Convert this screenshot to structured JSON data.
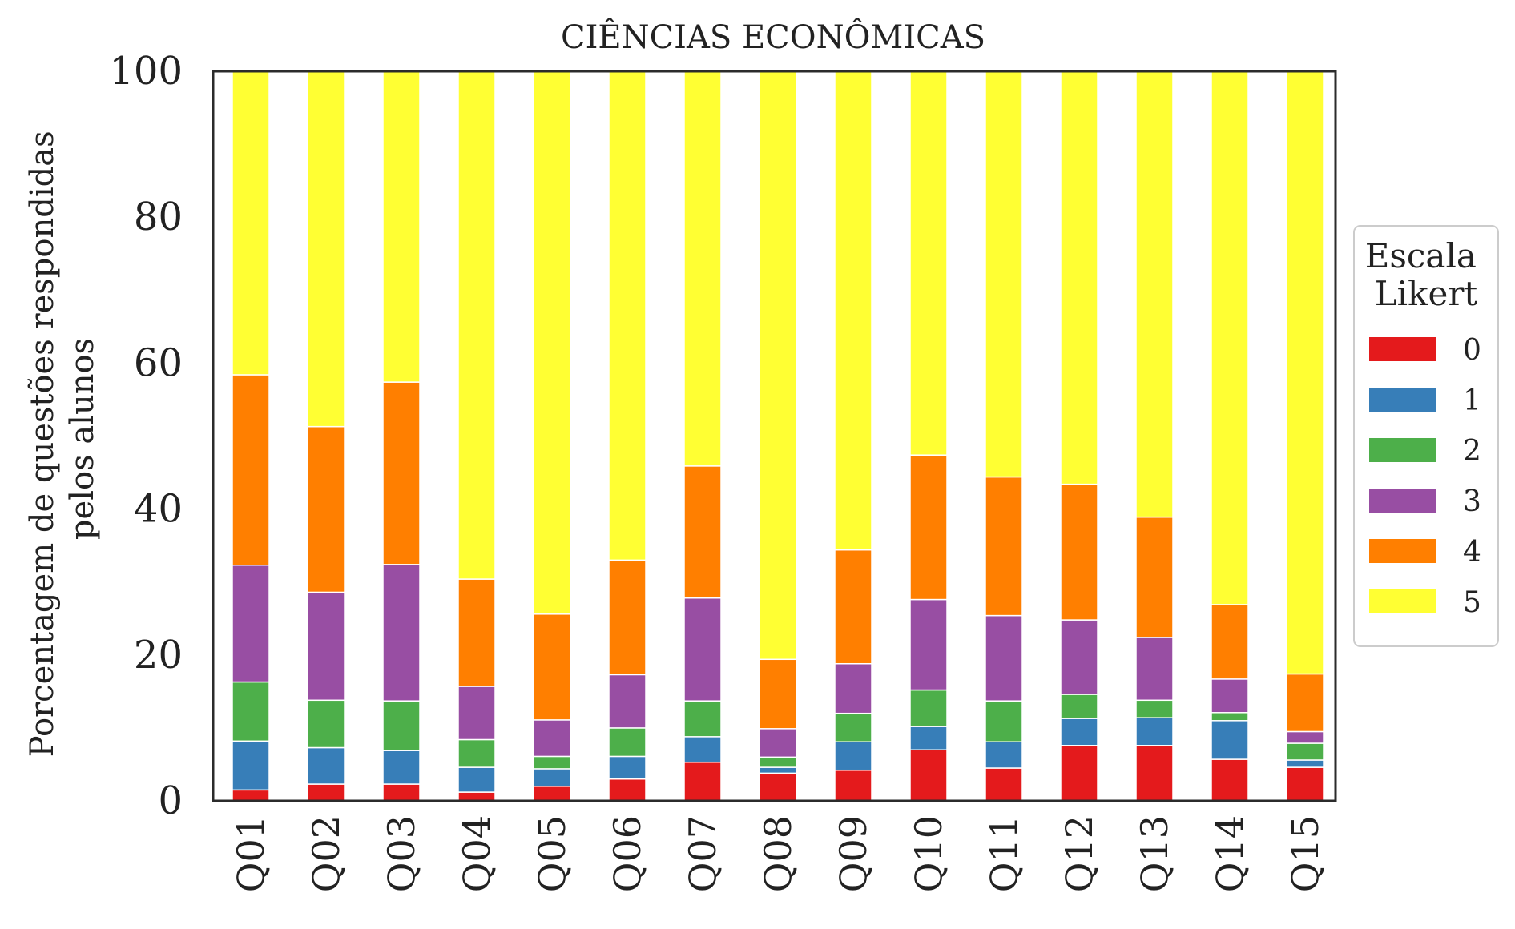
{
  "chart_data": {
    "type": "bar",
    "stacked": true,
    "title": "CIÊNCIAS ECONÔMICAS",
    "ylabel_lines": [
      "Porcentagem de questões respondidas",
      "pelos alunos"
    ],
    "xlabel": "",
    "ylim": [
      0,
      100
    ],
    "yticks": [
      "0",
      "20",
      "40",
      "60",
      "80",
      "100"
    ],
    "grid": false,
    "legend_position": "right",
    "legend_title_lines": [
      "Escala",
      "Likert"
    ],
    "categories": [
      "Q01",
      "Q02",
      "Q03",
      "Q04",
      "Q05",
      "Q06",
      "Q07",
      "Q08",
      "Q09",
      "Q10",
      "Q11",
      "Q12",
      "Q13",
      "Q14",
      "Q15"
    ],
    "series": [
      {
        "name": "0",
        "color": "#e41a1c",
        "values": [
          1.5,
          2.3,
          2.3,
          1.2,
          2.0,
          3.0,
          5.3,
          3.8,
          4.2,
          7.0,
          4.5,
          7.6,
          7.6,
          5.7,
          4.6
        ]
      },
      {
        "name": "1",
        "color": "#377eb8",
        "values": [
          6.7,
          5.0,
          4.6,
          3.4,
          2.4,
          3.1,
          3.5,
          0.8,
          3.9,
          3.2,
          3.6,
          3.7,
          3.8,
          5.3,
          1.0
        ]
      },
      {
        "name": "2",
        "color": "#4daf4a",
        "values": [
          8.1,
          6.5,
          6.8,
          3.8,
          1.7,
          3.9,
          4.9,
          1.4,
          3.9,
          5.0,
          5.6,
          3.3,
          2.4,
          1.1,
          2.3
        ]
      },
      {
        "name": "3",
        "color": "#984ea3",
        "values": [
          16.0,
          14.8,
          18.7,
          7.3,
          5.0,
          7.3,
          14.1,
          3.9,
          6.8,
          12.4,
          11.7,
          10.2,
          8.6,
          4.6,
          1.6
        ]
      },
      {
        "name": "4",
        "color": "#ff7f00",
        "values": [
          26.1,
          22.7,
          25.0,
          14.7,
          14.5,
          15.7,
          18.1,
          9.5,
          15.6,
          19.8,
          19.0,
          18.6,
          16.5,
          10.2,
          7.9
        ]
      },
      {
        "name": "5",
        "color": "#ffff33",
        "values": [
          41.6,
          48.7,
          42.6,
          69.6,
          74.4,
          67.0,
          54.1,
          80.6,
          65.6,
          52.6,
          55.6,
          56.6,
          61.1,
          73.1,
          82.6
        ]
      }
    ]
  }
}
